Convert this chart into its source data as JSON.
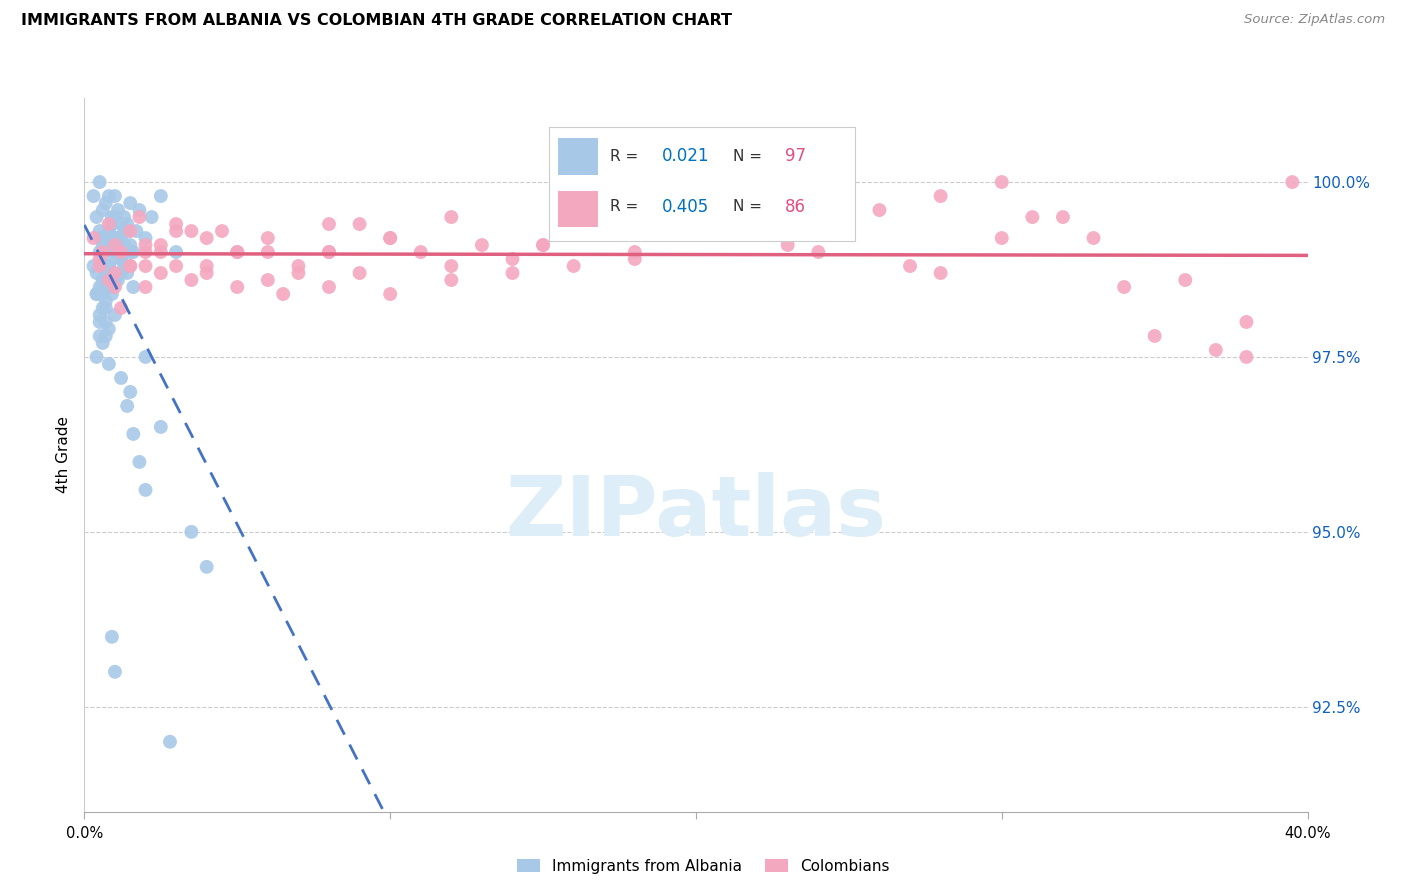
{
  "title": "IMMIGRANTS FROM ALBANIA VS COLOMBIAN 4TH GRADE CORRELATION CHART",
  "source": "Source: ZipAtlas.com",
  "ylabel": "4th Grade",
  "yticks": [
    92.5,
    95.0,
    97.5,
    100.0
  ],
  "ytick_labels": [
    "92.5%",
    "95.0%",
    "97.5%",
    "100.0%"
  ],
  "xlim": [
    0.0,
    40.0
  ],
  "ylim": [
    91.0,
    101.2
  ],
  "albania_R": 0.021,
  "albania_N": 97,
  "colombian_R": 0.405,
  "colombian_N": 86,
  "albania_color": "#a8c8e8",
  "colombian_color": "#f4a8c0",
  "albania_line_color": "#4472C4",
  "colombian_line_color": "#e06080",
  "watermark_color": "#ddeef8",
  "albania_x": [
    0.3,
    0.4,
    0.5,
    0.5,
    0.6,
    0.6,
    0.7,
    0.7,
    0.8,
    0.8,
    0.9,
    0.9,
    1.0,
    1.0,
    1.1,
    1.1,
    1.2,
    1.2,
    1.3,
    1.3,
    1.4,
    1.5,
    1.6,
    1.7,
    1.8,
    2.0,
    2.2,
    2.5,
    3.0,
    0.4,
    0.5,
    0.6,
    0.7,
    0.8,
    0.9,
    1.0,
    1.1,
    1.2,
    1.3,
    1.4,
    1.5,
    1.6,
    0.3,
    0.4,
    0.5,
    0.6,
    0.7,
    0.8,
    0.9,
    1.0,
    1.1,
    1.2,
    1.3,
    1.4,
    1.5,
    0.5,
    0.6,
    0.7,
    0.8,
    0.9,
    1.0,
    1.1,
    1.2,
    0.4,
    0.5,
    0.6,
    0.7,
    0.8,
    0.9,
    1.0,
    0.5,
    0.6,
    0.7,
    0.8,
    0.4,
    0.5,
    0.6,
    0.7,
    0.8,
    0.9,
    1.0,
    1.5,
    2.0,
    2.5,
    3.5,
    4.0,
    0.6,
    0.7,
    0.8,
    1.2,
    1.4,
    1.6,
    1.8,
    2.0,
    0.9,
    1.0,
    2.8
  ],
  "albania_y": [
    99.8,
    99.5,
    100.0,
    99.2,
    99.6,
    99.0,
    99.7,
    98.8,
    99.3,
    99.8,
    99.5,
    99.1,
    99.8,
    99.2,
    99.6,
    99.0,
    99.4,
    98.9,
    99.5,
    99.1,
    99.3,
    99.7,
    99.0,
    99.3,
    99.6,
    99.2,
    99.5,
    99.8,
    99.0,
    98.7,
    99.3,
    98.5,
    99.1,
    98.8,
    99.4,
    98.6,
    99.2,
    98.9,
    99.3,
    98.7,
    99.1,
    98.5,
    98.8,
    98.4,
    99.0,
    98.6,
    99.2,
    98.8,
    99.4,
    99.0,
    98.6,
    99.2,
    98.8,
    99.4,
    99.0,
    98.5,
    99.1,
    98.7,
    99.3,
    98.9,
    99.5,
    99.1,
    98.7,
    98.4,
    98.0,
    98.6,
    98.2,
    98.8,
    98.4,
    99.0,
    97.8,
    98.4,
    98.0,
    98.6,
    97.5,
    98.1,
    97.7,
    98.3,
    97.9,
    98.5,
    98.1,
    97.0,
    97.5,
    96.5,
    95.0,
    94.5,
    98.2,
    97.8,
    97.4,
    97.2,
    96.8,
    96.4,
    96.0,
    95.6,
    93.5,
    93.0,
    92.0
  ],
  "colombian_x": [
    0.3,
    0.5,
    0.8,
    1.0,
    1.2,
    1.5,
    1.8,
    2.0,
    2.5,
    3.0,
    3.5,
    4.0,
    5.0,
    6.0,
    7.0,
    8.0,
    9.0,
    10.0,
    12.0,
    14.0,
    15.0,
    16.0,
    18.0,
    20.0,
    22.0,
    25.0,
    28.0,
    30.0,
    32.0,
    35.0,
    38.0,
    39.5,
    0.6,
    1.0,
    1.5,
    2.0,
    2.5,
    3.0,
    4.0,
    5.0,
    6.5,
    8.0,
    10.0,
    12.0,
    15.0,
    18.0,
    22.0,
    26.0,
    30.0,
    34.0,
    38.0,
    1.2,
    2.0,
    3.0,
    4.5,
    6.0,
    8.0,
    10.0,
    13.0,
    16.0,
    20.0,
    24.0,
    28.0,
    33.0,
    37.0,
    0.8,
    1.5,
    2.5,
    4.0,
    6.0,
    8.0,
    11.0,
    14.0,
    18.0,
    23.0,
    27.0,
    31.0,
    36.0,
    0.5,
    1.0,
    2.0,
    3.5,
    5.0,
    7.0,
    9.0,
    12.0
  ],
  "colombian_y": [
    99.2,
    98.8,
    99.4,
    98.5,
    99.0,
    98.8,
    99.5,
    99.1,
    98.7,
    99.3,
    98.6,
    99.2,
    98.5,
    99.0,
    98.8,
    99.4,
    98.7,
    99.2,
    99.5,
    98.9,
    99.1,
    99.6,
    99.0,
    99.3,
    99.7,
    99.4,
    99.8,
    100.0,
    99.5,
    97.8,
    97.5,
    100.0,
    99.0,
    98.7,
    99.3,
    98.5,
    99.1,
    99.4,
    98.8,
    99.0,
    98.4,
    99.0,
    99.2,
    98.6,
    99.1,
    98.9,
    99.4,
    99.6,
    99.2,
    98.5,
    98.0,
    98.2,
    99.0,
    98.8,
    99.3,
    98.6,
    99.0,
    98.4,
    99.1,
    98.8,
    99.3,
    99.0,
    98.7,
    99.2,
    97.6,
    98.6,
    98.8,
    99.0,
    98.7,
    99.2,
    98.5,
    99.0,
    98.7,
    99.3,
    99.1,
    98.8,
    99.5,
    98.6,
    98.9,
    99.1,
    98.8,
    99.3,
    99.0,
    98.7,
    99.4,
    98.8
  ]
}
